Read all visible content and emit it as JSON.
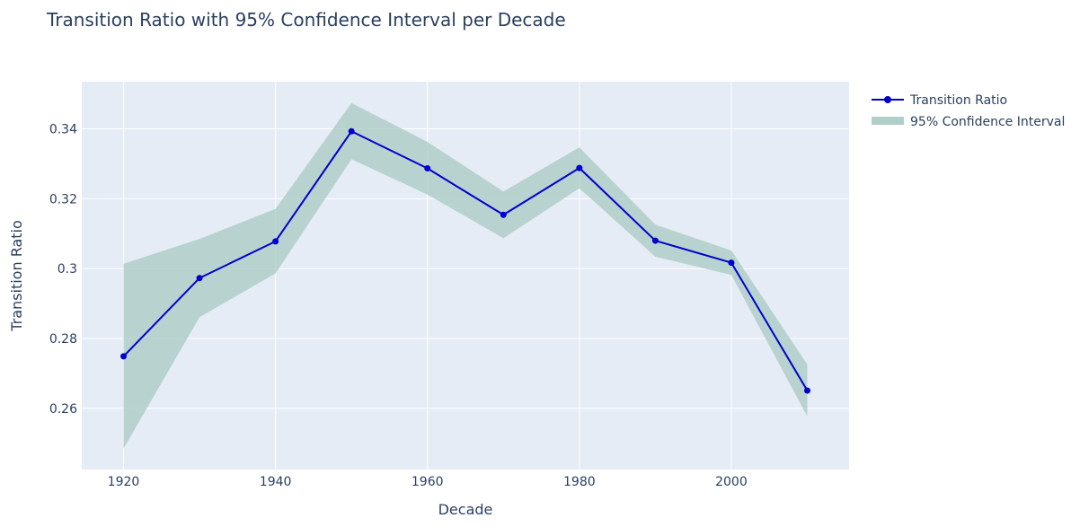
{
  "chart_data": {
    "type": "line",
    "title": "Transition Ratio with 95% Confidence Interval per Decade",
    "xlabel": "Decade",
    "ylabel": "Transition Ratio",
    "x": [
      1920,
      1930,
      1940,
      1950,
      1960,
      1970,
      1980,
      1990,
      2000,
      2010
    ],
    "series": [
      {
        "name": "Transition Ratio",
        "kind": "line+markers",
        "color": "#0000cd",
        "values": [
          0.2749,
          0.2973,
          0.3078,
          0.3393,
          0.3287,
          0.3154,
          0.3288,
          0.308,
          0.3017,
          0.2651
        ]
      },
      {
        "name": "95% Confidence Interval",
        "kind": "band",
        "color": "#b0cfc8",
        "upper": [
          0.3014,
          0.3085,
          0.3171,
          0.3474,
          0.3363,
          0.3221,
          0.3347,
          0.3126,
          0.3052,
          0.2726
        ],
        "lower": [
          0.2485,
          0.2861,
          0.2986,
          0.3313,
          0.3212,
          0.3087,
          0.323,
          0.3034,
          0.2982,
          0.2577
        ]
      }
    ],
    "x_ticks": [
      1920,
      1940,
      1960,
      1980,
      2000
    ],
    "x_tick_labels": [
      "1920",
      "1940",
      "1960",
      "1980",
      "2000"
    ],
    "y_ticks": [
      0.26,
      0.28,
      0.3,
      0.32,
      0.34
    ],
    "y_tick_labels": [
      "0.26",
      "0.28",
      "0.3",
      "0.32",
      "0.34"
    ],
    "xlim": [
      1914.5,
      2015.5
    ],
    "ylim": [
      0.2425,
      0.3535
    ],
    "grid": true,
    "legend_position": "top-right",
    "plot_background": "#e5ecf6"
  }
}
